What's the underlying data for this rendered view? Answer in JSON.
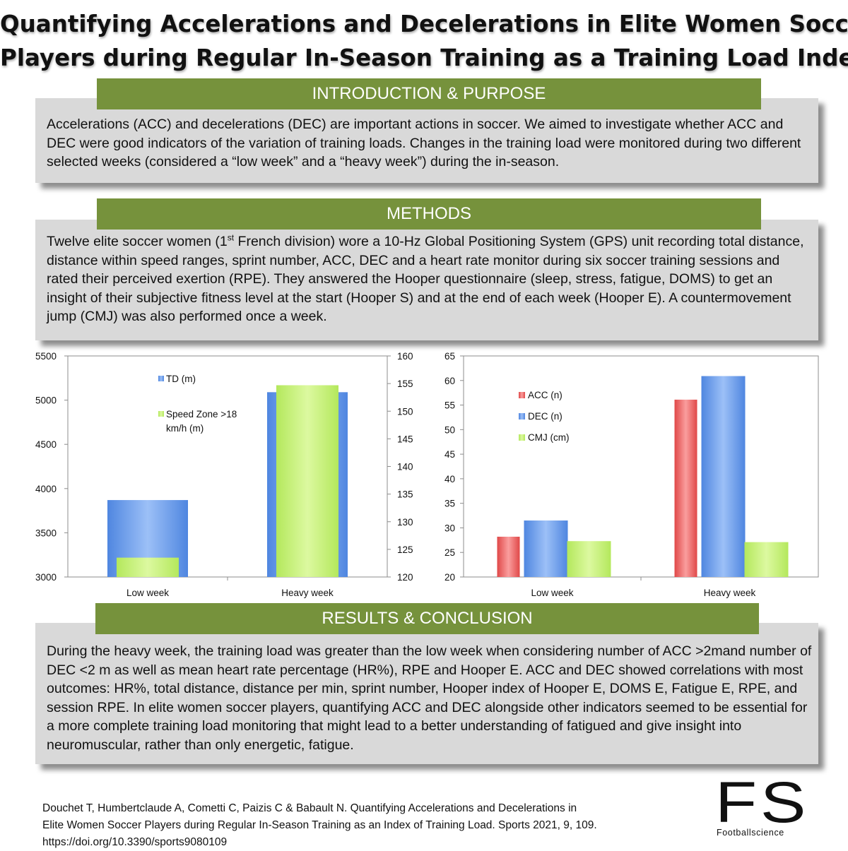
{
  "title": {
    "line1": "Quantifying Accelerations and Decelerations in Elite Women Soccer",
    "line2": "Players during Regular In-Season Training as a Training Load Index"
  },
  "intro": {
    "heading": "INTRODUCTION & PURPOSE",
    "text": "Accelerations (ACC) and decelerations (DEC) are important actions in soccer. We aimed to investigate whether ACC and DEC were good indicators of the variation of training loads. Changes in the training load were monitored during two different selected weeks (considered a “low week” and a “heavy week”) during the in-season."
  },
  "methods": {
    "heading": "METHODS",
    "text_before_sup": "Twelve elite soccer women (1",
    "sup": "st",
    "text_after_sup": " French division) wore a 10-Hz Global Positioning System (GPS) unit recording total distance, distance within speed ranges, sprint number, ACC, DEC and a heart rate monitor during six soccer training sessions and rated their perceived exertion (RPE). They answered the Hooper questionnaire (sleep, stress, fatigue, DOMS) to get an insight of their subjective fitness level at the start (Hooper S) and at the end of each week (Hooper E). A countermovement jump (CMJ) was also performed once a week."
  },
  "results": {
    "heading": "RESULTS & CONCLUSION",
    "text": "During the heavy week, the training load was greater than the low week when considering number of ACC >2mand number of DEC <2 m as well as mean heart rate percentage (HR%), RPE and Hooper E. ACC and DEC showed correlations with most outcomes: HR%, total distance, distance per min, sprint number, Hooper index of Hooper E, DOMS E, Fatigue E, RPE, and session RPE. In elite women soccer players, quantifying ACC and DEC alongside other indicators seemed to be essential for a more complete training load monitoring that might lead to a better understanding of fatigued and give insight into neuromuscular, rather than only energetic, fatigue."
  },
  "citation": {
    "line1": "Douchet T, Humbertclaude A, Cometti C, Paizis C & Babault N. Quantifying Accelerations and Decelerations in",
    "line2": "Elite Women Soccer Players during Regular In-Season Training as an Index of Training Load. Sports 2021, 9, 109.",
    "line3": "https://doi.org/10.3390/sports9080109"
  },
  "logo": {
    "letters": "FS",
    "name": "Footballscience"
  },
  "colors": {
    "banner": "#76923c",
    "panel": "#d9d9d9",
    "td": "#6f9ee6",
    "speed": "#c6f27a",
    "acc": "#ee6b6b",
    "dec": "#6f9ee6",
    "cmj": "#c6f27a"
  },
  "chart_data": [
    {
      "type": "bar",
      "categories": [
        "Low week",
        "Heavy week"
      ],
      "series": [
        {
          "name": "TD (m)",
          "axis": "left",
          "values": [
            3870,
            5090
          ]
        },
        {
          "name": "Speed Zone >18 km/h (m)",
          "axis": "right",
          "values": [
            123.5,
            154.7
          ]
        }
      ],
      "ylim_left": [
        3000,
        5500
      ],
      "yticks_left": [
        3000,
        3500,
        4000,
        4500,
        5000,
        5500
      ],
      "ylim_right": [
        120,
        160
      ],
      "yticks_right": [
        120,
        125,
        130,
        135,
        140,
        145,
        150,
        155,
        160
      ],
      "grid": false,
      "legend": "inside-top-left"
    },
    {
      "type": "bar",
      "categories": [
        "Low week",
        "Heavy week"
      ],
      "series": [
        {
          "name": "ACC (n)",
          "values": [
            28.2,
            56.1
          ]
        },
        {
          "name": "DEC (n)",
          "values": [
            31.5,
            60.9
          ]
        },
        {
          "name": "CMJ (cm)",
          "values": [
            27.3,
            27.1
          ]
        }
      ],
      "ylim": [
        20,
        65
      ],
      "yticks": [
        20,
        25,
        30,
        35,
        40,
        45,
        50,
        55,
        60,
        65
      ],
      "grid": true,
      "legend": "inside-top-left"
    }
  ]
}
